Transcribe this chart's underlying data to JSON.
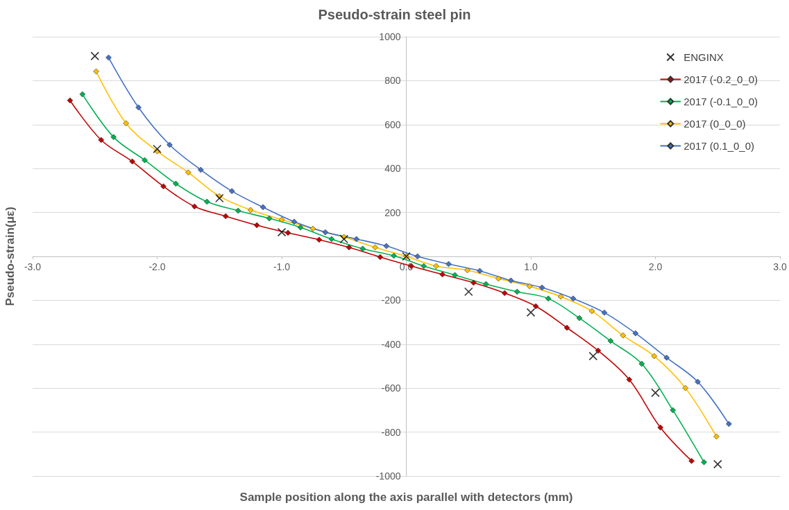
{
  "chart_data": {
    "type": "line",
    "title": "Pseudo-strain steel pin",
    "xlabel": "Sample position along the axis parallel with detectors (mm)",
    "ylabel": "Pseudo-strain(με)",
    "xlim": [
      -3,
      3
    ],
    "xticks": [
      {
        "value": -3,
        "label": "-3.0"
      },
      {
        "value": -2,
        "label": "-2.0"
      },
      {
        "value": -1,
        "label": "-1.0"
      },
      {
        "value": 0,
        "label": "0.0"
      },
      {
        "value": 1,
        "label": "1.0"
      },
      {
        "value": 2,
        "label": "2.0"
      },
      {
        "value": 3,
        "label": "3.0"
      }
    ],
    "ylim": [
      -1000,
      1000
    ],
    "yticks": [
      -1000,
      -800,
      -600,
      -400,
      -200,
      {
        "value": 0,
        "label": null
      },
      200,
      400,
      600,
      800,
      1000
    ],
    "grid": "y",
    "legend": "top right",
    "line_style": "solid",
    "series": [
      {
        "name": "ENGINX",
        "type": "scatter",
        "marker": "cross",
        "color": "#000000",
        "x": [
          -2.5,
          -2,
          -1.5,
          -1,
          -0.5,
          0,
          0.5,
          1,
          1.5,
          2,
          2.5
        ],
        "values": [
          912,
          489,
          265,
          110,
          79,
          0,
          -161,
          -255,
          -454,
          -621,
          -946
        ]
      },
      {
        "name": "2017 (-0.2_0_0)",
        "type": "line",
        "marker": "diamond",
        "color": "#c00000",
        "x": [
          -2.7,
          -2.45,
          -2.2,
          -1.95,
          -1.7,
          -1.45,
          -1.2,
          -0.95,
          -0.7,
          -0.46,
          -0.21,
          0.04,
          0.29,
          0.54,
          0.79,
          1.04,
          1.29,
          1.54,
          1.79,
          2.04,
          2.29
        ],
        "values": [
          710,
          530,
          432,
          319,
          227,
          183,
          142,
          107,
          76,
          41,
          -3,
          -44,
          -82,
          -120,
          -167,
          -227,
          -325,
          -429,
          -561,
          -779,
          -931
        ]
      },
      {
        "name": "2017 (-0.1_0_0)",
        "type": "line",
        "marker": "diamond",
        "color": "#00b050",
        "x": [
          -2.6,
          -2.35,
          -2.1,
          -1.85,
          -1.6,
          -1.35,
          -1.1,
          -0.85,
          -0.6,
          -0.35,
          -0.1,
          0.14,
          0.39,
          0.64,
          0.89,
          1.14,
          1.39,
          1.64,
          1.89,
          2.14,
          2.39
        ],
        "values": [
          738,
          543,
          438,
          331,
          249,
          208,
          173,
          132,
          79,
          35,
          3,
          -44,
          -85,
          -126,
          -161,
          -192,
          -281,
          -385,
          -489,
          -700,
          -937
        ]
      },
      {
        "name": "2017 (0_0_0)",
        "type": "line",
        "marker": "diamond",
        "color": "#ffc000",
        "x": [
          -2.49,
          -2.25,
          -2,
          -1.75,
          -1.5,
          -1.25,
          -1,
          -0.75,
          -0.5,
          -0.25,
          0,
          0.24,
          0.49,
          0.74,
          0.99,
          1.24,
          1.49,
          1.74,
          1.99,
          2.24,
          2.49
        ],
        "values": [
          842,
          606,
          479,
          382,
          274,
          211,
          167,
          126,
          88,
          41,
          0,
          -44,
          -63,
          -101,
          -136,
          -183,
          -249,
          -360,
          -454,
          -599,
          -820
        ]
      },
      {
        "name": "2017 (0.1_0_0)",
        "type": "line",
        "marker": "diamond",
        "color": "#4472c4",
        "x": [
          -2.39,
          -2.15,
          -1.9,
          -1.65,
          -1.4,
          -1.15,
          -0.9,
          -0.65,
          -0.4,
          -0.16,
          0.09,
          0.34,
          0.59,
          0.84,
          1.09,
          1.34,
          1.59,
          1.84,
          2.09,
          2.34,
          2.59
        ],
        "values": [
          905,
          678,
          508,
          394,
          297,
          224,
          158,
          110,
          79,
          47,
          0,
          -35,
          -66,
          -110,
          -142,
          -192,
          -256,
          -350,
          -461,
          -571,
          -763
        ]
      }
    ]
  }
}
